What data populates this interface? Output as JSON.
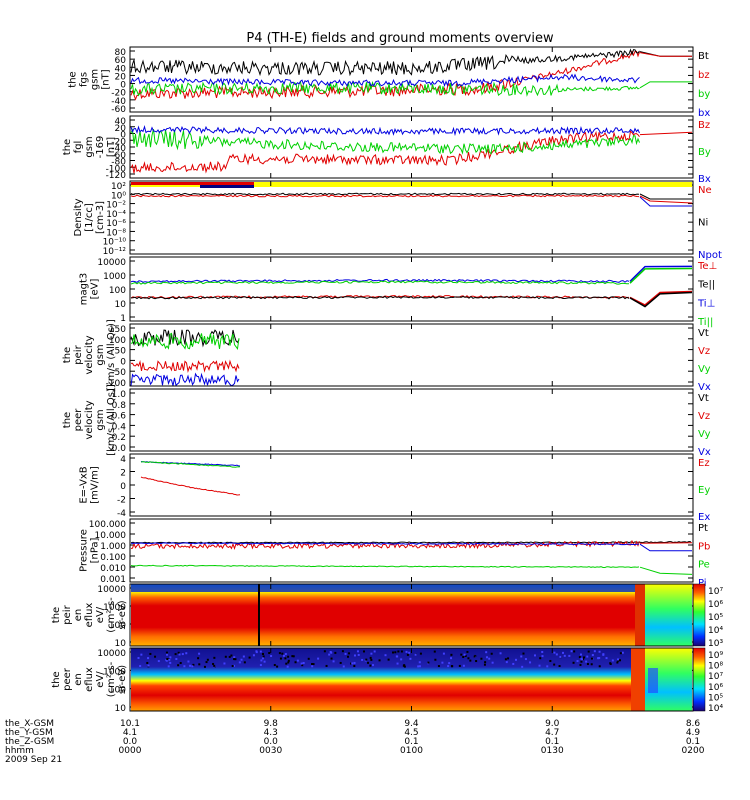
{
  "title": "P4 (TH-E) fields and ground moments overview",
  "colors": {
    "black": "#000000",
    "red": "#e00000",
    "green": "#00d000",
    "blue": "#0000e0",
    "yellow": "#ffff00"
  },
  "panels": [
    {
      "ylabel": [
        "the",
        "fgs",
        "gsm",
        "[nT]"
      ],
      "ticks": [
        "80",
        "60",
        "40",
        "20",
        "0",
        "-20",
        "-40",
        "-60"
      ],
      "legend": [
        {
          "t": "Bt",
          "c": "black"
        },
        {
          "t": "bz",
          "c": "red"
        },
        {
          "t": "by",
          "c": "green"
        },
        {
          "t": "bx",
          "c": "blue"
        }
      ]
    },
    {
      "ylabel": [
        "the",
        "fgl",
        "gsm",
        "-169",
        "[nT]"
      ],
      "ticks": [
        "40",
        "20",
        "0",
        "-20",
        "-40",
        "-60",
        "-80",
        "-100",
        "-120"
      ],
      "legend": [
        {
          "t": "Bz",
          "c": "red"
        },
        {
          "t": "By",
          "c": "green"
        },
        {
          "t": "Bx",
          "c": "blue"
        }
      ]
    },
    {
      "ylabel": [
        "Density",
        "[1/cc]",
        "[cm-3]"
      ],
      "ticks": [
        "10²",
        "10⁰",
        "10⁻²",
        "10⁻⁴",
        "10⁻⁶",
        "10⁻⁸",
        "10⁻¹⁰",
        "10⁻¹²"
      ],
      "legend": [
        {
          "t": "Ne",
          "c": "red"
        },
        {
          "t": "Ni",
          "c": "black"
        },
        {
          "t": "Npot",
          "c": "blue"
        }
      ]
    },
    {
      "ylabel": [
        "magt3",
        "[eV]"
      ],
      "ticks": [
        "10000",
        "1000",
        "100",
        "10",
        "1"
      ],
      "legend": [
        {
          "t": "Te⊥",
          "c": "red"
        },
        {
          "t": "Te||",
          "c": "black"
        },
        {
          "t": "Ti⊥",
          "c": "blue"
        },
        {
          "t": "Ti||",
          "c": "green"
        }
      ]
    },
    {
      "ylabel": [
        "the",
        "peir",
        "velocity",
        "gsm",
        "[km/s (All Qs)]"
      ],
      "ticks": [
        "150",
        "100",
        "50",
        "0",
        "-50",
        "-100"
      ],
      "legend": [
        {
          "t": "Vt",
          "c": "black"
        },
        {
          "t": "Vz",
          "c": "red"
        },
        {
          "t": "Vy",
          "c": "green"
        },
        {
          "t": "Vx",
          "c": "blue"
        }
      ]
    },
    {
      "ylabel": [
        "the",
        "peer",
        "velocity",
        "gsm",
        "[km/s (All Qs)]"
      ],
      "ticks": [
        "1.0",
        "0.8",
        "0.6",
        "0.4",
        "0.2",
        "0.0"
      ],
      "legend": [
        {
          "t": "Vt",
          "c": "black"
        },
        {
          "t": "Vz",
          "c": "red"
        },
        {
          "t": "Vy",
          "c": "green"
        },
        {
          "t": "Vx",
          "c": "blue"
        }
      ]
    },
    {
      "ylabel": [
        "E=-VxB",
        "[mV/m]"
      ],
      "ticks": [
        "4",
        "2",
        "0",
        "-2",
        "-4"
      ],
      "legend": [
        {
          "t": "Ez",
          "c": "red"
        },
        {
          "t": "Ey",
          "c": "green"
        },
        {
          "t": "Ex",
          "c": "blue"
        }
      ]
    },
    {
      "ylabel": [
        "Pressure",
        "[nPa]"
      ],
      "ticks": [
        "100.000",
        "10.000",
        "1.000",
        "0.100",
        "0.010",
        "0.001"
      ],
      "legend": [
        {
          "t": "Pt",
          "c": "black"
        },
        {
          "t": "Pb",
          "c": "red"
        },
        {
          "t": "Pe",
          "c": "green"
        },
        {
          "t": "Pi",
          "c": "blue"
        }
      ]
    },
    {
      "ylabel": [
        "the",
        "peir",
        "en",
        "eflux",
        "eV/",
        "(cm²-s-",
        "sr-eV)"
      ],
      "ticks": [
        "10000",
        "1000",
        "100",
        "10"
      ],
      "colorbar": [
        "10⁷",
        "10⁶",
        "10⁵",
        "10⁴",
        "10³"
      ]
    },
    {
      "ylabel": [
        "the",
        "peer",
        "en",
        "eflux",
        "eV/",
        "(cm²-s-",
        "sr-eV)"
      ],
      "ticks": [
        "10000",
        "1000",
        "100",
        "10"
      ],
      "colorbar": [
        "10⁹",
        "10⁸",
        "10⁷",
        "10⁶",
        "10⁵",
        "10⁴"
      ]
    }
  ],
  "xaxis": {
    "rows": [
      {
        "label": "the_X-GSM",
        "vals": [
          "10.1",
          "9.8",
          "9.4",
          "9.0",
          "8.6"
        ]
      },
      {
        "label": "the_Y-GSM",
        "vals": [
          "4.1",
          "4.3",
          "4.5",
          "4.7",
          "4.9"
        ]
      },
      {
        "label": "the_Z-GSM",
        "vals": [
          "0.0",
          "0.0",
          "0.1",
          "0.1",
          "0.1"
        ]
      },
      {
        "label": "hhmm",
        "vals": [
          "0000",
          "0030",
          "0100",
          "0130",
          "0200"
        ]
      }
    ],
    "date": "2009 Sep 21"
  },
  "chart_data": {
    "type": "line",
    "title": "P4 (TH-E) fields and ground moments overview",
    "x": [
      "0000",
      "0030",
      "0100",
      "0130",
      "0200"
    ],
    "series_approx": [
      {
        "name": "Bt",
        "panel": 0,
        "levels": [
          40,
          38,
          35,
          48,
          62,
          70,
          62
        ]
      },
      {
        "name": "bz",
        "panel": 0,
        "levels": [
          -20,
          -18,
          -15,
          -5,
          30,
          65,
          62
        ]
      },
      {
        "name": "by",
        "panel": 0,
        "levels": [
          -15,
          -10,
          -10,
          -15,
          -15,
          -10,
          5
        ]
      },
      {
        "name": "bx",
        "panel": 0,
        "levels": [
          10,
          5,
          0,
          10,
          15,
          10,
          0
        ]
      },
      {
        "name": "Bz",
        "panel": 1,
        "levels": [
          -90,
          -70,
          -75,
          -70,
          -20,
          -10,
          -5
        ]
      },
      {
        "name": "By",
        "panel": 1,
        "levels": [
          -20,
          -30,
          -40,
          -40,
          -30,
          -25,
          -5
        ]
      },
      {
        "name": "Bx",
        "panel": 1,
        "levels": [
          5,
          0,
          0,
          5,
          0,
          0,
          -5
        ]
      }
    ],
    "ylim": [
      [
        -60,
        80
      ],
      [
        -120,
        40
      ],
      null,
      [
        1,
        10000
      ],
      [
        -100,
        150
      ],
      [
        0,
        1
      ],
      [
        -4,
        4
      ],
      [
        0.001,
        100
      ],
      [
        10,
        10000
      ],
      [
        10,
        10000
      ]
    ]
  }
}
